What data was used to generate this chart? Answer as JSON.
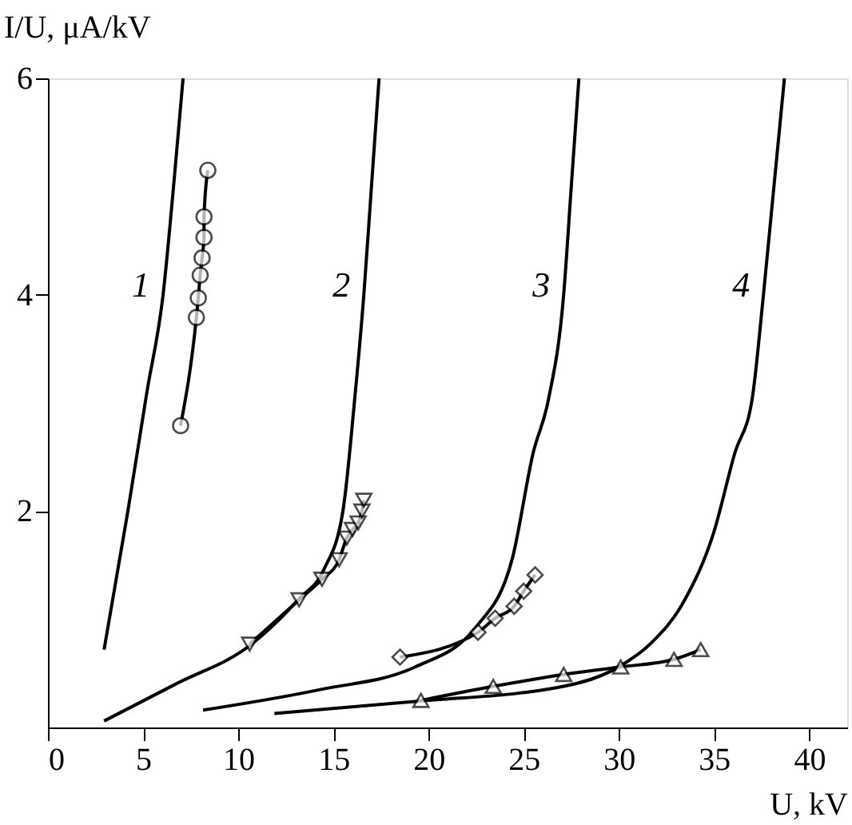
{
  "chart_data": {
    "type": "line",
    "xlabel": "U, kV",
    "ylabel": "I/U, μA/kV",
    "xlim": [
      0,
      42
    ],
    "ylim": [
      0,
      6
    ],
    "xticks": [
      0,
      5,
      10,
      15,
      20,
      25,
      30,
      35,
      40
    ],
    "yticks": [
      2,
      4,
      6
    ],
    "grid": false,
    "series": [
      {
        "name": "1",
        "color": "#000000",
        "marker": "none",
        "x": [
          2.95,
          4.2,
          5.2,
          6.05,
          6.6,
          7.1
        ],
        "values": [
          0.72,
          2,
          3.1,
          4,
          5,
          6
        ]
      },
      {
        "name": "2",
        "color": "#000000",
        "marker": "none",
        "x": [
          2.95,
          6.7,
          10.7,
          13.2,
          14.5,
          15.5,
          16.1,
          16.6,
          17.0,
          17.4
        ],
        "values": [
          0.06,
          0.4,
          0.77,
          1.19,
          1.46,
          2,
          3,
          4,
          5,
          6
        ]
      },
      {
        "name": "3",
        "color": "#000000",
        "marker": "none",
        "x": [
          8.15,
          14.3,
          19.3,
          22.5,
          24.4,
          25.5,
          26.3,
          27.1,
          27.5,
          27.9
        ],
        "values": [
          0.16,
          0.35,
          0.56,
          0.93,
          1.56,
          2.54,
          3.03,
          4,
          5,
          6
        ]
      },
      {
        "name": "4",
        "color": "#000000",
        "marker": "none",
        "x": [
          11.9,
          19.3,
          27.1,
          30,
          31.7,
          33.4,
          35.0,
          36.1,
          37.0,
          37.6,
          38.7
        ],
        "values": [
          0.13,
          0.24,
          0.38,
          0.56,
          0.78,
          1.16,
          1.81,
          2.54,
          3.03,
          4,
          6
        ]
      },
      {
        "color": "#000000",
        "marker": "circle",
        "x": [
          6.97,
          7.8,
          7.9,
          8.0,
          8.1,
          8.2,
          8.2,
          8.4
        ],
        "values": [
          2.79,
          3.79,
          3.97,
          4.18,
          4.34,
          4.53,
          4.72,
          5.15
        ]
      },
      {
        "color": "#000000",
        "marker": "triangle-down",
        "x": [
          10.6,
          13.2,
          14.4,
          15.3,
          15.7,
          16.0,
          16.3,
          16.5,
          16.6
        ],
        "values": [
          0.77,
          1.18,
          1.37,
          1.55,
          1.75,
          1.83,
          1.89,
          2.0,
          2.1
        ]
      },
      {
        "color": "#000000",
        "marker": "diamond",
        "x": [
          18.5,
          22.6,
          23.5,
          24.5,
          25.0,
          25.6
        ],
        "values": [
          0.65,
          0.88,
          1.01,
          1.12,
          1.26,
          1.41
        ]
      },
      {
        "color": "#000000",
        "marker": "triangle",
        "x": [
          19.6,
          23.4,
          27.1,
          30.1,
          32.9,
          34.3
        ],
        "values": [
          0.25,
          0.38,
          0.49,
          0.56,
          0.63,
          0.72
        ]
      }
    ]
  }
}
